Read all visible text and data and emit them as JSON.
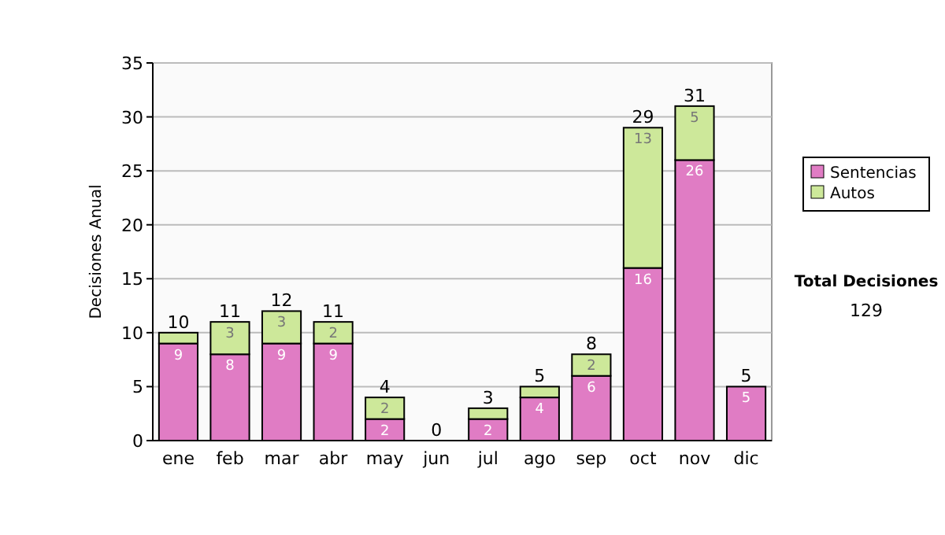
{
  "chart_data": {
    "type": "bar",
    "stacked": true,
    "ylabel": "Decisiones Anual",
    "categories": [
      "ene",
      "feb",
      "mar",
      "abr",
      "may",
      "jun",
      "jul",
      "ago",
      "sep",
      "oct",
      "nov",
      "dic"
    ],
    "series": [
      {
        "name": "Sentencias",
        "color": "#e07cc4",
        "values": [
          9,
          8,
          9,
          9,
          2,
          0,
          2,
          4,
          6,
          16,
          26,
          5
        ],
        "value_labels": [
          "9",
          "8",
          "9",
          "9",
          "2",
          null,
          "2",
          "4",
          "6",
          "16",
          "26",
          "5"
        ]
      },
      {
        "name": "Autos",
        "color": "#cde89a",
        "values": [
          1,
          3,
          3,
          2,
          2,
          0,
          1,
          1,
          2,
          13,
          5,
          0
        ],
        "value_labels": [
          null,
          "3",
          "3",
          "2",
          "2",
          null,
          null,
          null,
          "2",
          "13",
          "5",
          null
        ]
      }
    ],
    "totals": [
      "10",
      "11",
      "12",
      "11",
      "4",
      "0",
      "3",
      "5",
      "8",
      "29",
      "31",
      "5"
    ],
    "ylim": [
      0,
      35
    ],
    "yticks": [
      0,
      5,
      10,
      15,
      20,
      25,
      30,
      35
    ],
    "grid": "y",
    "legend": "right",
    "annotations": [
      "Total Decisiones",
      "129"
    ]
  }
}
